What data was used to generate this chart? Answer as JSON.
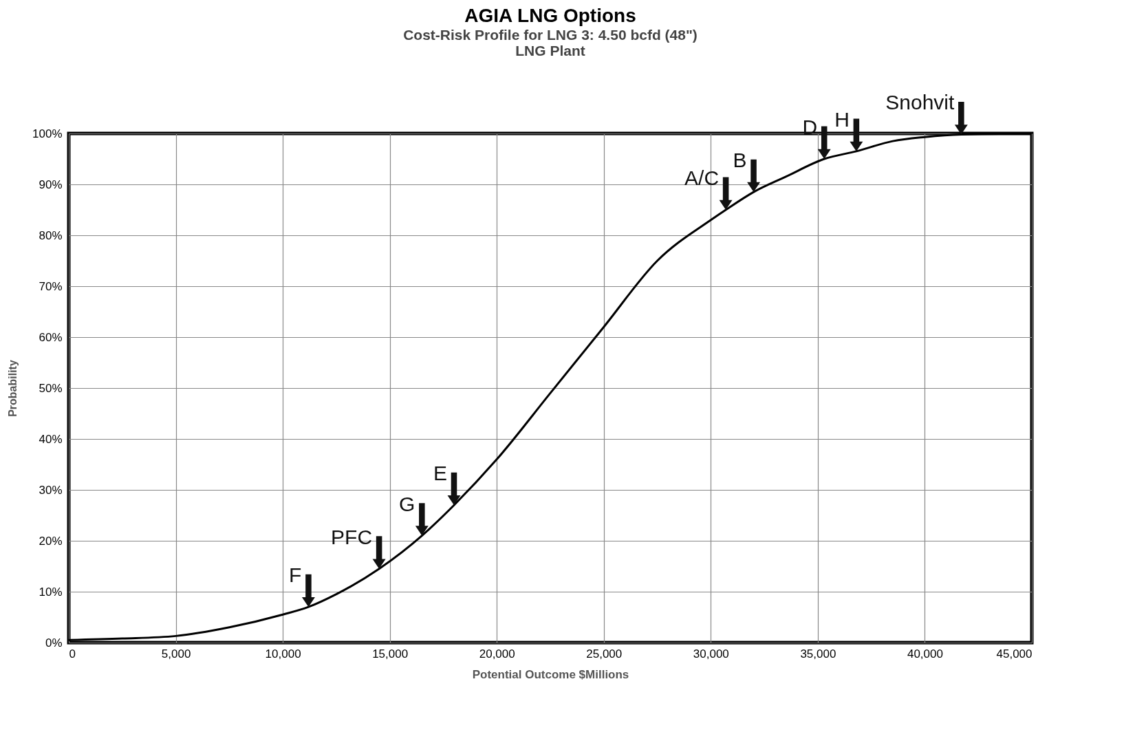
{
  "chart_data": {
    "type": "line",
    "title": "AGIA LNG Options",
    "subtitle": "Cost-Risk Profile for LNG 3: 4.50 bcfd (48\")\nLNG Plant",
    "xlabel": "Potential Outcome $Millions",
    "ylabel": "Probability",
    "x": [
      0,
      2500,
      5000,
      7500,
      10000,
      11200,
      12500,
      14500,
      16500,
      18000,
      20000,
      22500,
      25000,
      27500,
      30000,
      30700,
      32000,
      33500,
      35300,
      36800,
      38500,
      40000,
      41700,
      45000
    ],
    "series": [
      {
        "color": "#000000",
        "values": [
          0.5,
          0.8,
          1.3,
          3,
          5.5,
          7,
          9.5,
          14.5,
          21,
          27,
          36,
          49,
          62,
          75,
          83,
          85,
          88.5,
          91.5,
          95,
          96.5,
          98.5,
          99.3,
          99.8,
          100
        ]
      }
    ],
    "xlim": [
      0,
      45000
    ],
    "ylim": [
      0,
      100
    ],
    "xticks": [
      0,
      {
        "value": 5000,
        "label": "5,000"
      },
      {
        "value": 10000,
        "label": "10,000"
      },
      {
        "value": 15000,
        "label": "15,000"
      },
      {
        "value": 20000,
        "label": "20,000"
      },
      {
        "value": 25000,
        "label": "25,000"
      },
      {
        "value": 30000,
        "label": "30,000"
      },
      {
        "value": 35000,
        "label": "35,000"
      },
      {
        "value": 40000,
        "label": "40,000"
      },
      {
        "value": 45000,
        "label": "45,000"
      }
    ],
    "yticks": [
      {
        "value": 0,
        "label": "0%"
      },
      {
        "value": 10,
        "label": "10%"
      },
      {
        "value": 20,
        "label": "20%"
      },
      {
        "value": 30,
        "label": "30%"
      },
      {
        "value": 40,
        "label": "40%"
      },
      {
        "value": 50,
        "label": "50%"
      },
      {
        "value": 60,
        "label": "60%"
      },
      {
        "value": 70,
        "label": "70%"
      },
      {
        "value": 80,
        "label": "80%"
      },
      {
        "value": 90,
        "label": "90%"
      },
      {
        "value": 100,
        "label": "100%"
      }
    ],
    "grid": true,
    "marker": "none",
    "line_style": "solid",
    "annotations": [
      {
        "text": "F",
        "x": 11200,
        "y": 7
      },
      {
        "text": "PFC",
        "x": 14500,
        "y": 14.5
      },
      {
        "text": "G",
        "x": 16500,
        "y": 21
      },
      {
        "text": "E",
        "x": 18000,
        "y": 27
      },
      {
        "text": "A/C",
        "x": 30700,
        "y": 85
      },
      {
        "text": "B",
        "x": 32000,
        "y": 88.5
      },
      {
        "text": "D",
        "x": 35300,
        "y": 95
      },
      {
        "text": "H",
        "x": 36800,
        "y": 96.5
      },
      {
        "text": "Snohvit",
        "x": 41700,
        "y": 99.8
      }
    ]
  }
}
